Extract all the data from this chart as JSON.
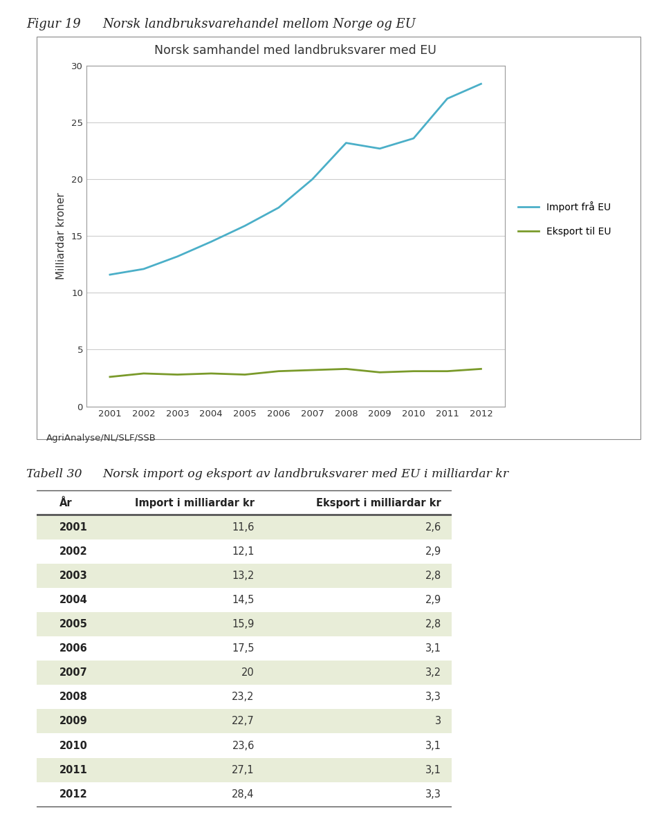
{
  "fig_title_left": "Figur 19",
  "fig_title_right": "Norsk landbruksvarehandel mellom Norge og EU",
  "chart_title": "Norsk samhandel med landbruksvarer med EU",
  "ylabel": "Milliardar kroner",
  "source": "AgriAnalyse/NL/SLF/SSB",
  "years": [
    2001,
    2002,
    2003,
    2004,
    2005,
    2006,
    2007,
    2008,
    2009,
    2010,
    2011,
    2012
  ],
  "import_values": [
    11.6,
    12.1,
    13.2,
    14.5,
    15.9,
    17.5,
    20.0,
    23.2,
    22.7,
    23.6,
    27.1,
    28.4
  ],
  "export_values": [
    2.6,
    2.9,
    2.8,
    2.9,
    2.8,
    3.1,
    3.2,
    3.3,
    3.0,
    3.1,
    3.1,
    3.3
  ],
  "import_color": "#4BAFC8",
  "export_color": "#7A9A2A",
  "import_label": "Import frå EU",
  "export_label": "Eksport til EU",
  "ylim": [
    0,
    30
  ],
  "yticks": [
    0,
    5,
    10,
    15,
    20,
    25,
    30
  ],
  "table_title_left": "Tabell 30",
  "table_title_right": "Norsk import og eksport av landbruksvarer med EU i milliardar kr",
  "table_headers": [
    "År",
    "Import i milliardar kr",
    "Eksport i milliardar kr"
  ],
  "table_years": [
    "2001",
    "2002",
    "2003",
    "2004",
    "2005",
    "2006",
    "2007",
    "2008",
    "2009",
    "2010",
    "2011",
    "2012"
  ],
  "table_import": [
    "11,6",
    "12,1",
    "13,2",
    "14,5",
    "15,9",
    "17,5",
    "20",
    "23,2",
    "22,7",
    "23,6",
    "27,1",
    "28,4"
  ],
  "table_export": [
    "2,6",
    "2,9",
    "2,8",
    "2,9",
    "2,8",
    "3,1",
    "3,2",
    "3,3",
    "3",
    "3,1",
    "3,1",
    "3,3"
  ],
  "row_color_shaded": "#E8EDD8",
  "row_color_plain": "#FFFFFF",
  "background_color": "#FFFFFF",
  "grid_color": "#CCCCCC",
  "spine_color": "#999999",
  "header_line_color": "#555555",
  "text_color": "#222222"
}
